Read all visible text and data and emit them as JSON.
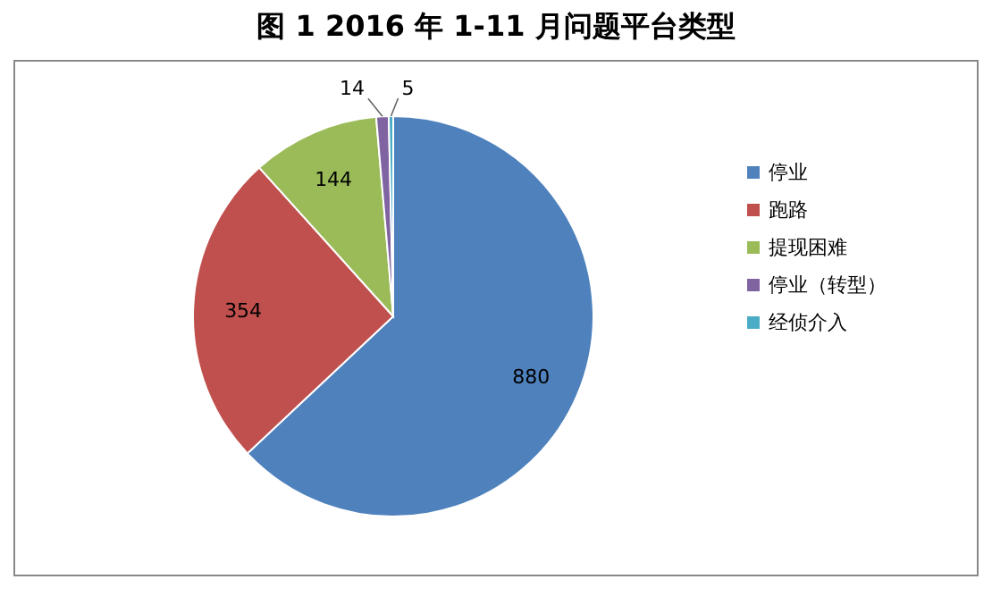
{
  "chart_data": {
    "type": "pie",
    "title": "图 1 2016 年 1-11 月问题平台类型",
    "categories": [
      "停业",
      "跑路",
      "提现困难",
      "停业（转型）",
      "经侦介入"
    ],
    "values": [
      880,
      354,
      144,
      14,
      5
    ],
    "colors": [
      "#4f81bd",
      "#c0504d",
      "#9bbb59",
      "#8064a2",
      "#4bacc6"
    ],
    "data_labels": true,
    "legend": "right"
  }
}
